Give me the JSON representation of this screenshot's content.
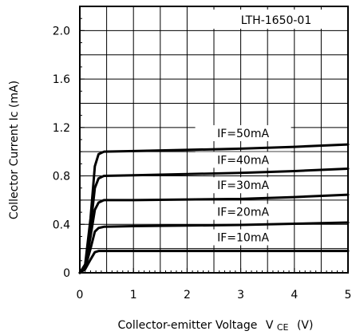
{
  "chart_data": {
    "type": "line",
    "title": "LTH-1650-01",
    "xlabel": "Collector-emitter Voltage",
    "xlabel_symbol": "V",
    "xlabel_subscript": "CE",
    "xlabel_unit": "(V)",
    "ylabel": "Collector Current Ic (mA)",
    "xlim": [
      0,
      5
    ],
    "ylim": [
      0,
      2.2
    ],
    "x_ticks": [
      "0",
      "1",
      "2",
      "3",
      "4",
      "5"
    ],
    "y_ticks": [
      "0",
      "0.4",
      "0.8",
      "1.2",
      "1.6",
      "2.0"
    ],
    "grid": true,
    "series": [
      {
        "name": "IF=10mA",
        "x": [
          0,
          0.1,
          0.2,
          0.28,
          0.35,
          0.45,
          1,
          2,
          3,
          4,
          5
        ],
        "y": [
          0,
          0.03,
          0.11,
          0.17,
          0.18,
          0.18,
          0.18,
          0.18,
          0.18,
          0.18,
          0.18
        ]
      },
      {
        "name": "IF=20mA",
        "x": [
          0,
          0.1,
          0.2,
          0.28,
          0.35,
          0.45,
          1,
          2,
          3,
          4,
          5
        ],
        "y": [
          0,
          0.04,
          0.2,
          0.34,
          0.37,
          0.38,
          0.385,
          0.39,
          0.395,
          0.405,
          0.415
        ]
      },
      {
        "name": "IF=30mA",
        "x": [
          0,
          0.1,
          0.2,
          0.28,
          0.35,
          0.45,
          1,
          2,
          3,
          4,
          5
        ],
        "y": [
          0,
          0.05,
          0.3,
          0.52,
          0.58,
          0.6,
          0.6,
          0.605,
          0.61,
          0.625,
          0.645
        ]
      },
      {
        "name": "IF=40mA",
        "x": [
          0,
          0.1,
          0.2,
          0.28,
          0.35,
          0.45,
          1,
          2,
          3,
          4,
          5
        ],
        "y": [
          0,
          0.06,
          0.38,
          0.7,
          0.78,
          0.8,
          0.805,
          0.815,
          0.825,
          0.84,
          0.86
        ]
      },
      {
        "name": "IF=50mA",
        "x": [
          0,
          0.1,
          0.2,
          0.28,
          0.35,
          0.45,
          1,
          2,
          3,
          4,
          5
        ],
        "y": [
          0,
          0.07,
          0.45,
          0.88,
          0.98,
          1.0,
          1.005,
          1.015,
          1.025,
          1.04,
          1.06
        ]
      }
    ],
    "series_labels": [
      {
        "text": "IF=50mA",
        "x": 3.0,
        "y": 1.12
      },
      {
        "text": "IF=40mA",
        "x": 3.0,
        "y": 0.9
      },
      {
        "text": "IF=30mA",
        "x": 3.0,
        "y": 0.69
      },
      {
        "text": "IF=20mA",
        "x": 3.0,
        "y": 0.47
      },
      {
        "text": "IF=10mA",
        "x": 3.0,
        "y": 0.26
      }
    ]
  }
}
